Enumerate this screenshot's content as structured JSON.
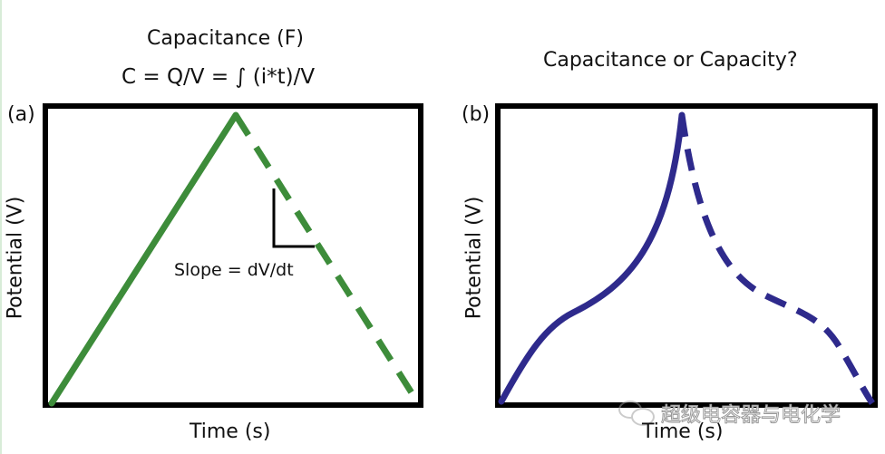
{
  "panel_a": {
    "label": "(a)",
    "title": "Capacitance (F)",
    "equation": "C = Q/V = ∫ (i*t)/V",
    "ylabel": "Potential (V)",
    "xlabel": "Time (s)",
    "annotation": "Slope = dV/dt",
    "color": "#3d8c3a"
  },
  "panel_b": {
    "label": "(b)",
    "title": "Capacitance or Capacity?",
    "ylabel": "Potential (V)",
    "xlabel": "Time (s)",
    "color": "#2e2a8c"
  },
  "watermark": "超级电容器与电化学"
}
